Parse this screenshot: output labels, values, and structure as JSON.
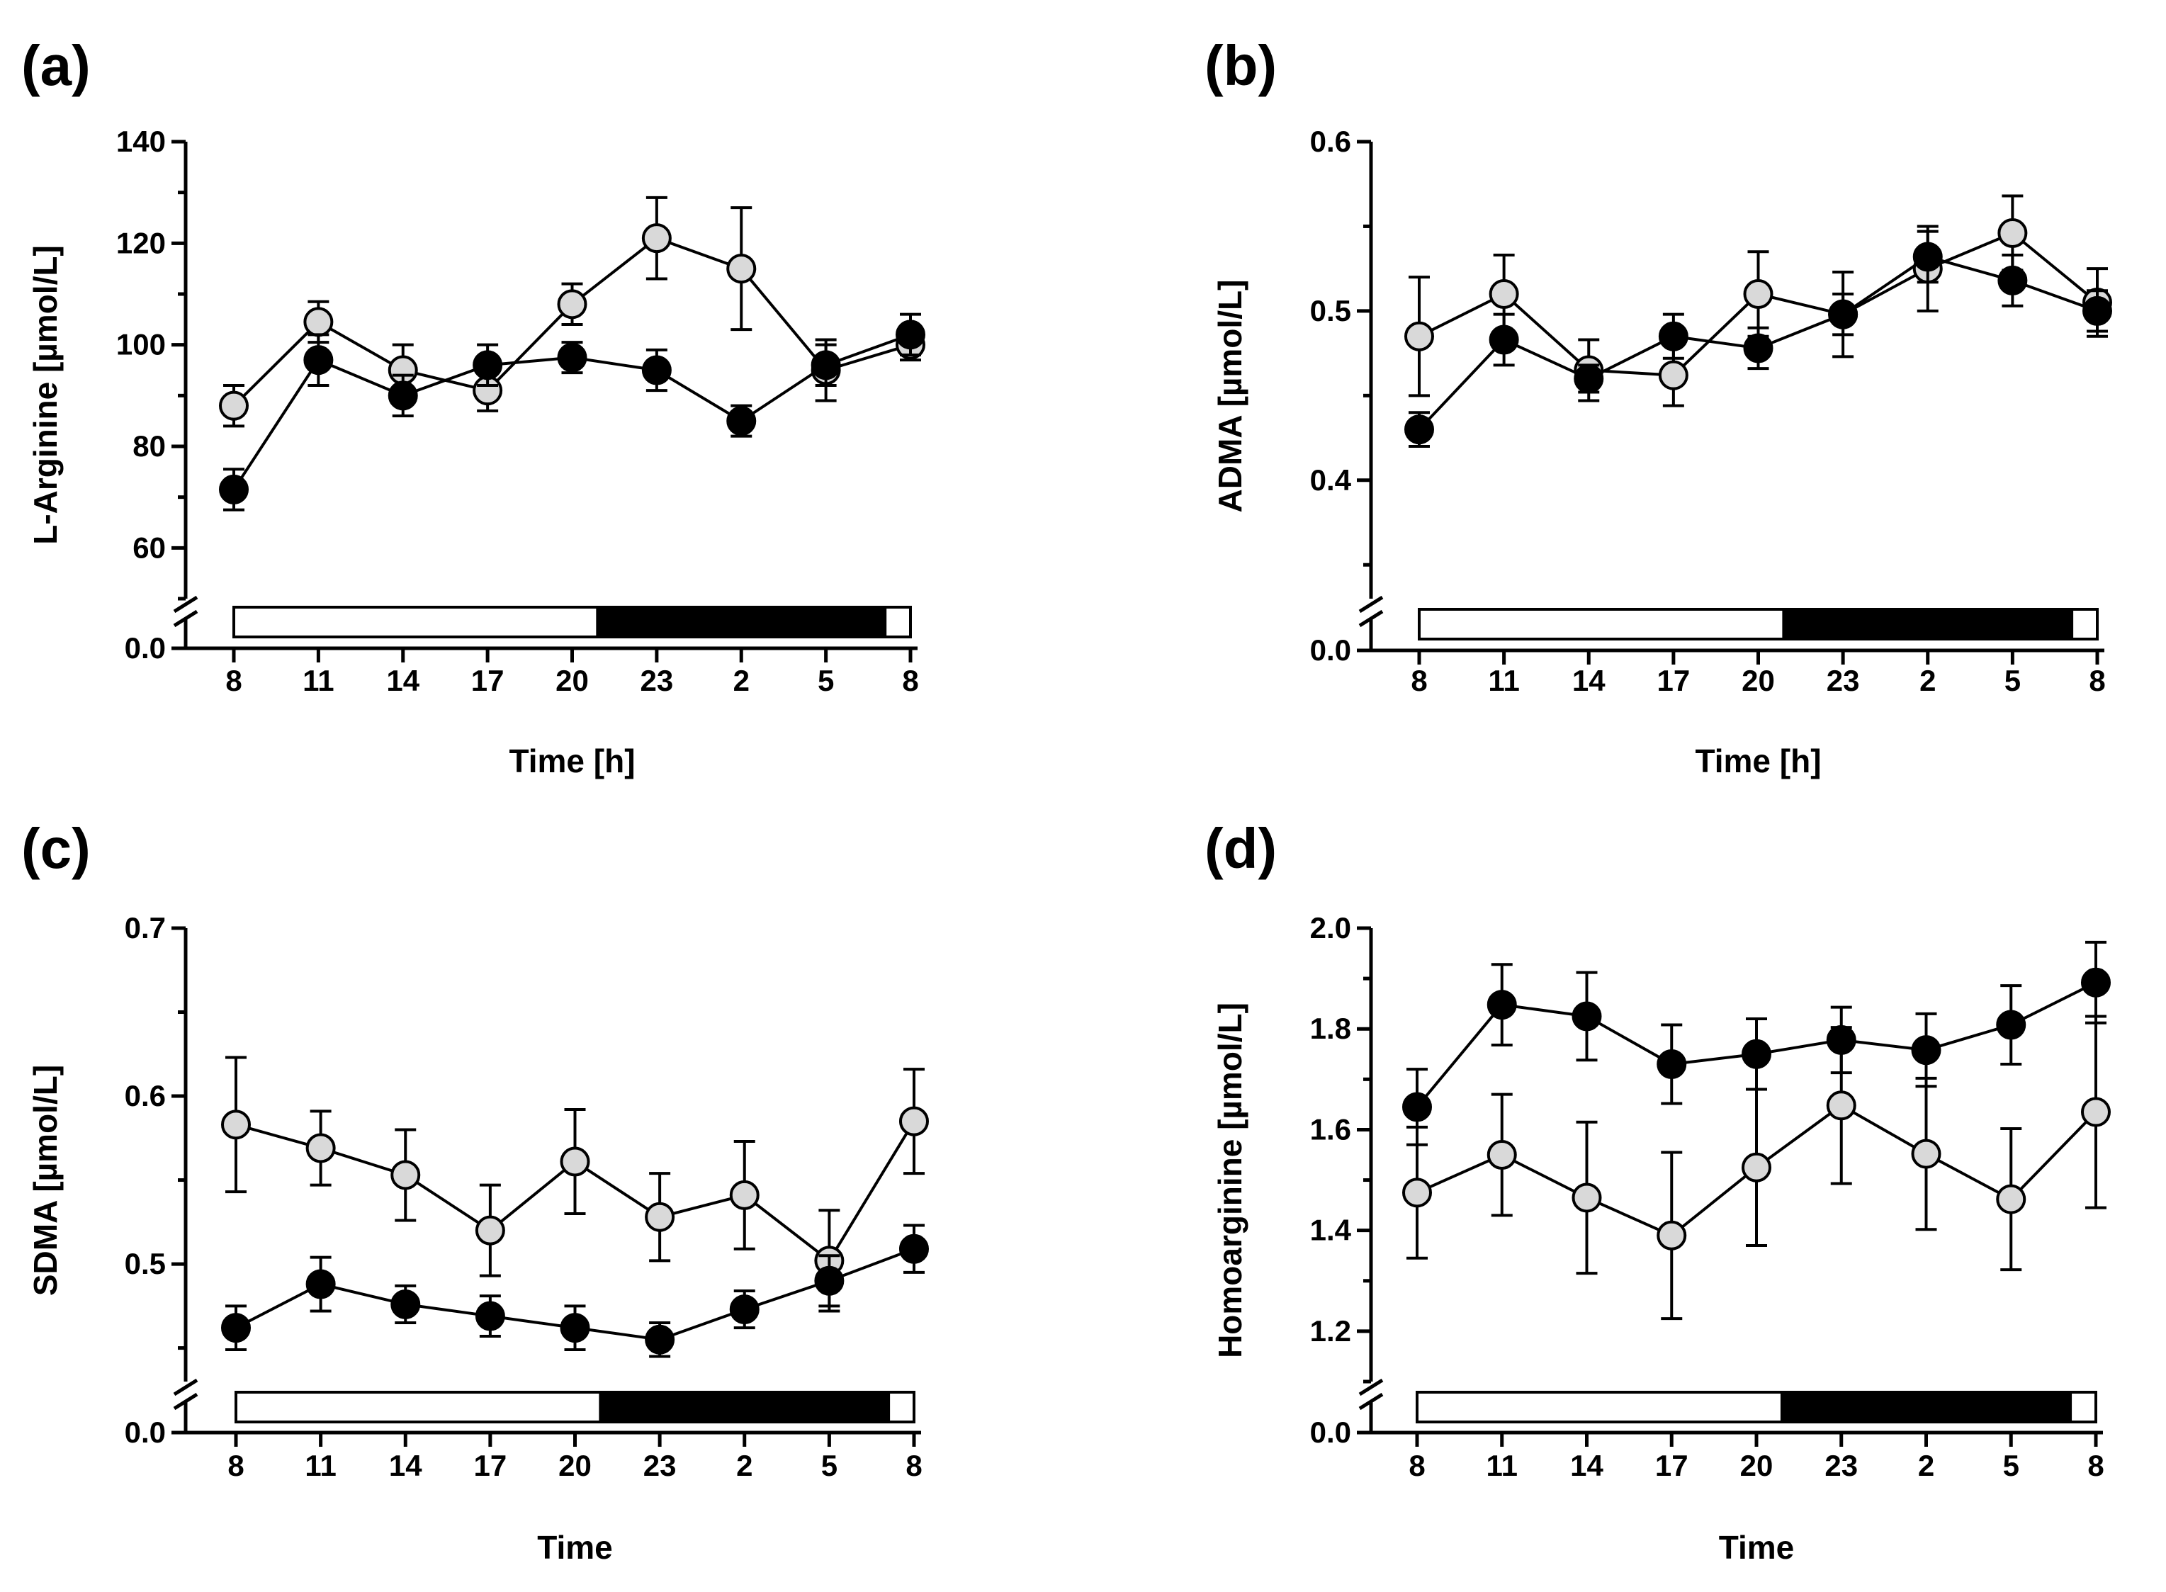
{
  "colors": {
    "light_marker": "#d9d9d9",
    "dark_marker": "#000000",
    "stroke": "#000000"
  },
  "chart_data": [
    {
      "panel": "(a)",
      "type": "line",
      "categories": [
        "8",
        "11",
        "14",
        "17",
        "20",
        "23",
        "2",
        "5",
        "8"
      ],
      "xlabel": "Time [h]",
      "ylabel": "L-Arginine [µmol/L]",
      "ylim": [
        50,
        140
      ],
      "yticks": [
        60,
        80,
        100,
        120,
        140
      ],
      "yticks_labels": [
        "60",
        "80",
        "100",
        "120",
        "140"
      ],
      "ybreak_label": "0.0",
      "light_dark_bar": {
        "light_until_index": 4.3,
        "dark_until_index": 7.7
      },
      "series": [
        {
          "name": "light",
          "marker": "light",
          "values": [
            88,
            104.5,
            95,
            91,
            108,
            121,
            115,
            95,
            100
          ],
          "errors": [
            4,
            4,
            5,
            4,
            4,
            8,
            12,
            6,
            3
          ]
        },
        {
          "name": "dark",
          "marker": "dark",
          "values": [
            71.5,
            97,
            90,
            96,
            97.5,
            95,
            85,
            96,
            102
          ],
          "errors": [
            4,
            5,
            4,
            4,
            3,
            4,
            3,
            4,
            4
          ]
        }
      ]
    },
    {
      "panel": "(b)",
      "type": "line",
      "categories": [
        "8",
        "11",
        "14",
        "17",
        "20",
        "23",
        "2",
        "5",
        "8"
      ],
      "xlabel": "Time [h]",
      "ylabel": "ADMA [µmol/L]",
      "ylim": [
        0.33,
        0.6
      ],
      "yticks": [
        0.4,
        0.5,
        0.6
      ],
      "yticks_labels": [
        "0.4",
        "0.5",
        "0.6"
      ],
      "ybreak_label": "0.0",
      "light_dark_bar": {
        "light_until_index": 4.3,
        "dark_until_index": 7.7
      },
      "series": [
        {
          "name": "light",
          "marker": "light",
          "values": [
            0.485,
            0.51,
            0.465,
            0.462,
            0.51,
            0.498,
            0.525,
            0.546,
            0.505
          ],
          "errors": [
            0.035,
            0.023,
            0.018,
            0.018,
            0.025,
            0.025,
            0.025,
            0.022,
            0.02
          ]
        },
        {
          "name": "dark",
          "marker": "dark",
          "values": [
            0.43,
            0.483,
            0.46,
            0.485,
            0.478,
            0.498,
            0.532,
            0.518,
            0.5
          ],
          "errors": [
            0.01,
            0.015,
            0.008,
            0.013,
            0.012,
            0.012,
            0.015,
            0.015,
            0.012
          ]
        }
      ]
    },
    {
      "panel": "(c)",
      "type": "line",
      "categories": [
        "8",
        "11",
        "14",
        "17",
        "20",
        "23",
        "2",
        "5",
        "8"
      ],
      "xlabel": "Time",
      "ylabel": "SDMA [µmol/L]",
      "ylim": [
        0.43,
        0.7
      ],
      "yticks": [
        0.5,
        0.6,
        0.7
      ],
      "yticks_labels": [
        "0.5",
        "0.6",
        "0.7"
      ],
      "ybreak_label": "0.0",
      "light_dark_bar": {
        "light_until_index": 4.3,
        "dark_until_index": 7.7
      },
      "series": [
        {
          "name": "light",
          "marker": "light",
          "values": [
            0.583,
            0.569,
            0.553,
            0.52,
            0.561,
            0.528,
            0.541,
            0.502,
            0.585
          ],
          "errors": [
            0.04,
            0.022,
            0.027,
            0.027,
            0.031,
            0.026,
            0.032,
            0.03,
            0.031
          ]
        },
        {
          "name": "dark",
          "marker": "dark",
          "values": [
            0.462,
            0.488,
            0.476,
            0.469,
            0.462,
            0.455,
            0.473,
            0.49,
            0.509
          ],
          "errors": [
            0.013,
            0.016,
            0.011,
            0.012,
            0.013,
            0.01,
            0.011,
            0.015,
            0.014
          ]
        }
      ]
    },
    {
      "panel": "(d)",
      "type": "line",
      "categories": [
        "8",
        "11",
        "14",
        "17",
        "20",
        "23",
        "2",
        "5",
        "8"
      ],
      "xlabel": "Time",
      "ylabel": "Homoarginine [µmol/L]",
      "ylim": [
        1.1,
        2.0
      ],
      "yticks": [
        1.2,
        1.4,
        1.6,
        1.8,
        2.0
      ],
      "yticks_labels": [
        "1.2",
        "1.4",
        "1.6",
        "1.8",
        "2.0"
      ],
      "ybreak_label": "0.0",
      "light_dark_bar": {
        "light_until_index": 4.3,
        "dark_until_index": 7.7
      },
      "series": [
        {
          "name": "light",
          "marker": "light",
          "values": [
            1.475,
            1.55,
            1.465,
            1.39,
            1.525,
            1.648,
            1.552,
            1.462,
            1.635
          ],
          "errors": [
            0.13,
            0.12,
            0.15,
            0.165,
            0.155,
            0.155,
            0.15,
            0.14,
            0.19
          ]
        },
        {
          "name": "dark",
          "marker": "dark",
          "values": [
            1.645,
            1.848,
            1.825,
            1.73,
            1.75,
            1.778,
            1.758,
            1.808,
            1.892
          ],
          "errors": [
            0.075,
            0.08,
            0.087,
            0.078,
            0.07,
            0.065,
            0.072,
            0.078,
            0.08
          ]
        }
      ]
    }
  ]
}
